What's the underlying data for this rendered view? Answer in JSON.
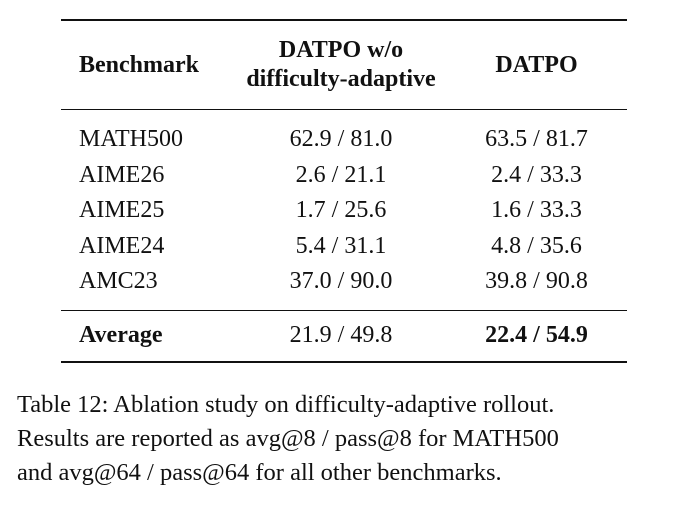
{
  "table": {
    "headers": {
      "benchmark": "Benchmark",
      "ablation_line1": "DATPO w/o",
      "ablation_line2": "difficulty-adaptive",
      "datpo": "DATPO"
    },
    "rows": [
      {
        "benchmark": "MATH500",
        "ablation": "62.9 / 81.0",
        "datpo": "63.5 / 81.7"
      },
      {
        "benchmark": "AIME26",
        "ablation": "2.6 / 21.1",
        "datpo": "2.4 / 33.3"
      },
      {
        "benchmark": "AIME25",
        "ablation": "1.7 / 25.6",
        "datpo": "1.6 / 33.3"
      },
      {
        "benchmark": "AIME24",
        "ablation": "5.4 / 31.1",
        "datpo": "4.8 / 35.6"
      },
      {
        "benchmark": "AMC23",
        "ablation": "37.0 / 90.0",
        "datpo": "39.8 / 90.8"
      }
    ],
    "average": {
      "label": "Average",
      "ablation": "21.9 / 49.8",
      "datpo": "22.4 / 54.9"
    }
  },
  "caption": {
    "line1": "Table 12: Ablation study on difficulty-adaptive rollout.",
    "line2": "Results are reported as avg@8 / pass@8 for MATH500",
    "line3": "and avg@64 / pass@64 for all other benchmarks."
  }
}
